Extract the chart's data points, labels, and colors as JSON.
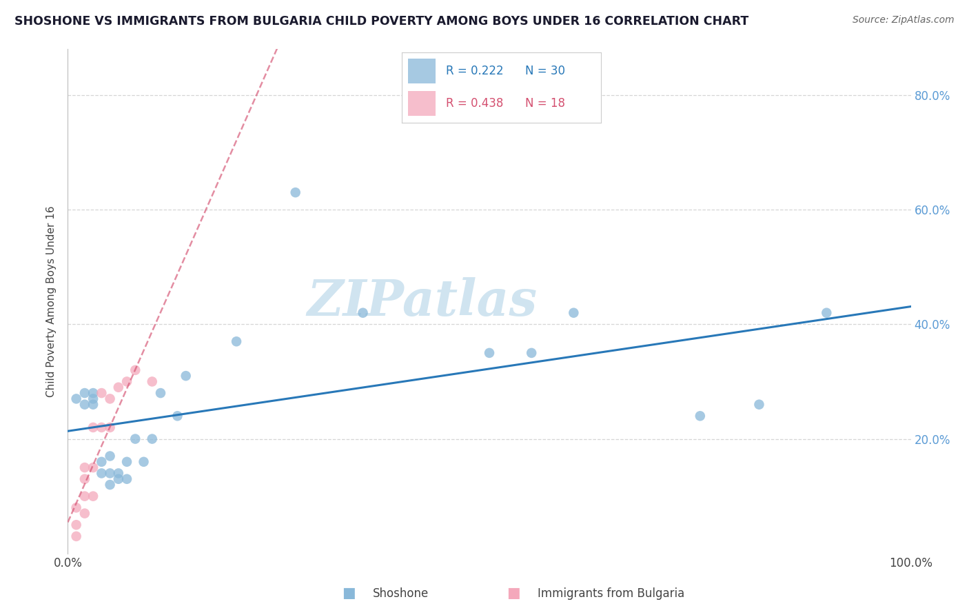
{
  "title": "SHOSHONE VS IMMIGRANTS FROM BULGARIA CHILD POVERTY AMONG BOYS UNDER 16 CORRELATION CHART",
  "source": "Source: ZipAtlas.com",
  "ylabel": "Child Poverty Among Boys Under 16",
  "xlim": [
    0.0,
    1.0
  ],
  "ylim": [
    0.0,
    0.88
  ],
  "x_ticks": [
    0.0,
    0.2,
    0.4,
    0.6,
    0.8,
    1.0
  ],
  "x_tick_labels": [
    "0.0%",
    "",
    "",
    "",
    "",
    "100.0%"
  ],
  "y_ticks": [
    0.2,
    0.4,
    0.6,
    0.8
  ],
  "y_tick_labels": [
    "20.0%",
    "40.0%",
    "60.0%",
    "80.0%"
  ],
  "shoshone_x": [
    0.01,
    0.02,
    0.02,
    0.03,
    0.03,
    0.03,
    0.04,
    0.04,
    0.05,
    0.05,
    0.05,
    0.06,
    0.06,
    0.07,
    0.07,
    0.08,
    0.09,
    0.1,
    0.11,
    0.13,
    0.14,
    0.2,
    0.27,
    0.35,
    0.5,
    0.55,
    0.6,
    0.75,
    0.82,
    0.9
  ],
  "shoshone_y": [
    0.27,
    0.26,
    0.28,
    0.26,
    0.27,
    0.28,
    0.14,
    0.16,
    0.12,
    0.14,
    0.17,
    0.13,
    0.14,
    0.13,
    0.16,
    0.2,
    0.16,
    0.2,
    0.28,
    0.24,
    0.31,
    0.37,
    0.63,
    0.42,
    0.35,
    0.35,
    0.42,
    0.24,
    0.26,
    0.42
  ],
  "bulgaria_x": [
    0.01,
    0.01,
    0.01,
    0.02,
    0.02,
    0.02,
    0.02,
    0.03,
    0.03,
    0.03,
    0.04,
    0.04,
    0.05,
    0.05,
    0.06,
    0.07,
    0.08,
    0.1
  ],
  "bulgaria_y": [
    0.03,
    0.05,
    0.08,
    0.07,
    0.1,
    0.13,
    0.15,
    0.1,
    0.15,
    0.22,
    0.22,
    0.28,
    0.22,
    0.27,
    0.29,
    0.3,
    0.32,
    0.3
  ],
  "shoshone_color": "#89b8d9",
  "bulgaria_color": "#f4a8bb",
  "shoshone_line_color": "#2878b8",
  "bulgaria_line_color": "#d45070",
  "shoshone_R": 0.222,
  "shoshone_N": 30,
  "bulgaria_R": 0.438,
  "bulgaria_N": 18,
  "watermark": "ZIPatlas",
  "watermark_color": "#d0e4f0",
  "bg_color": "#ffffff"
}
